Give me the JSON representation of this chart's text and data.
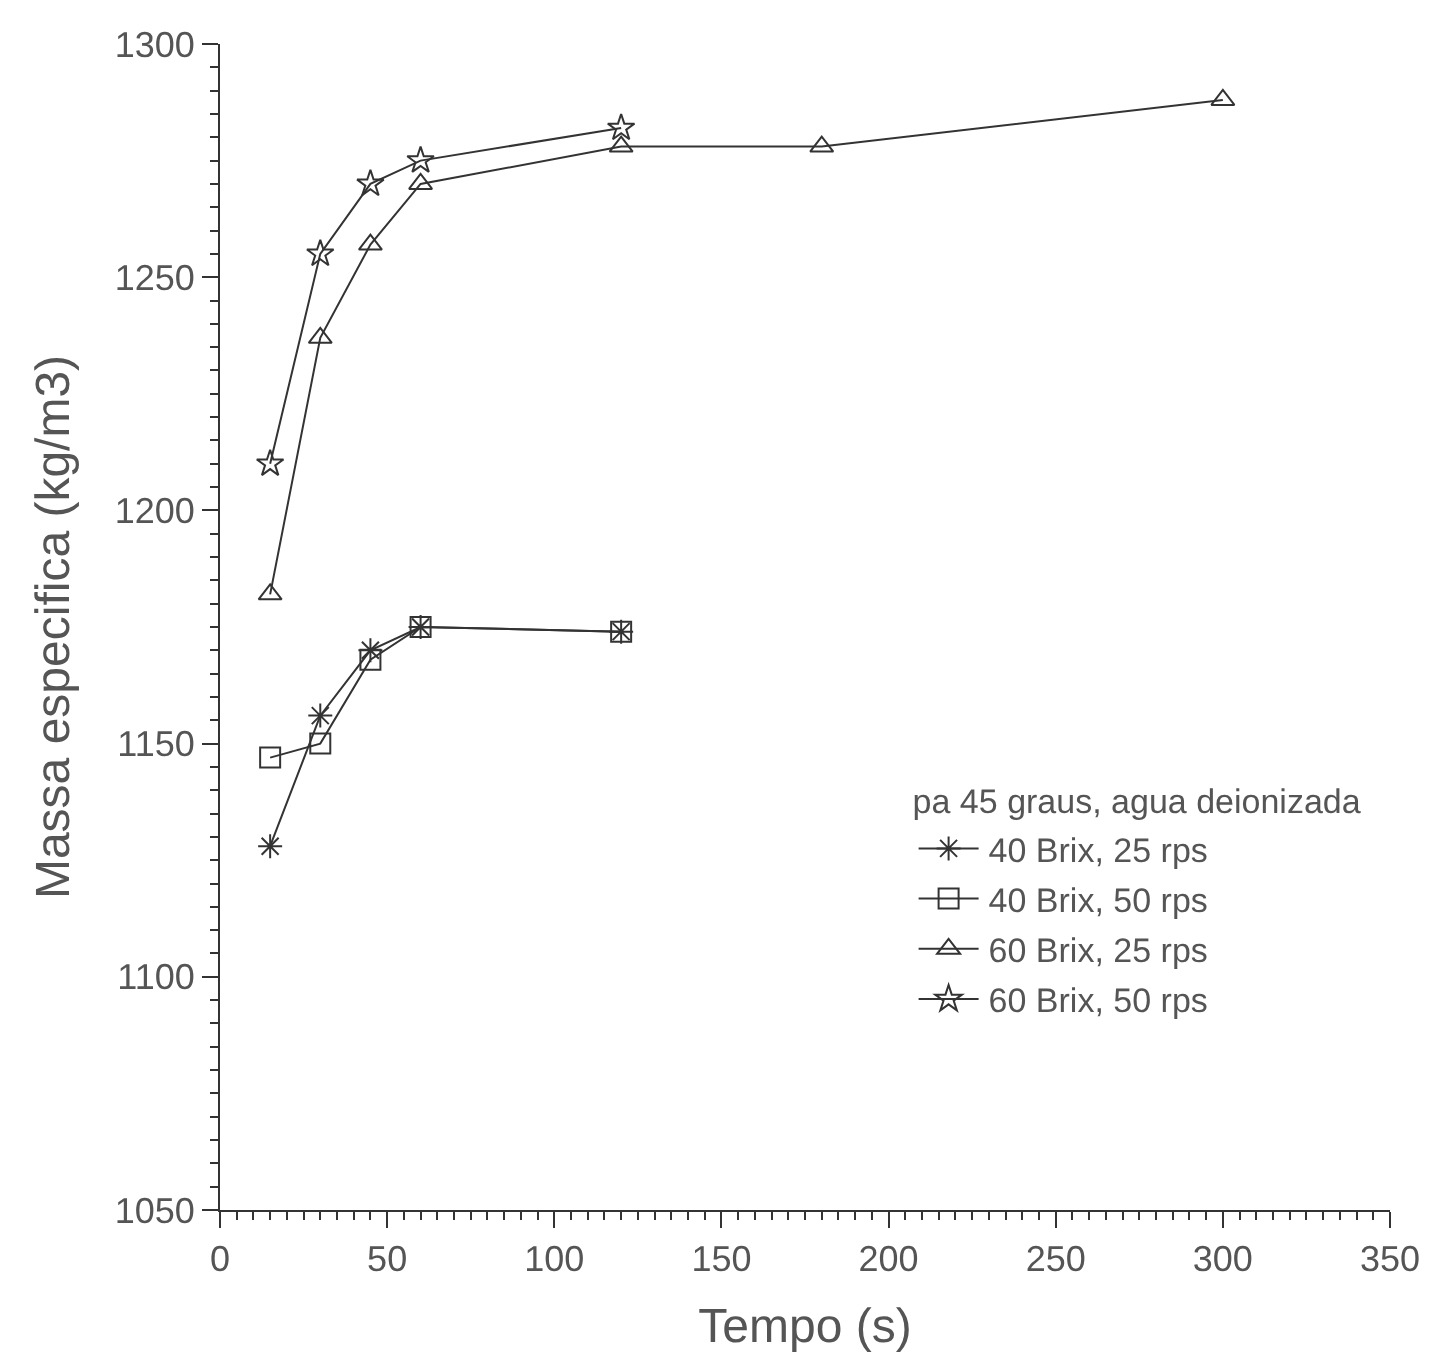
{
  "chart_data": {
    "type": "line",
    "xlabel": "Tempo (s)",
    "ylabel": "Massa especifica (kg/m3)",
    "legend_title": "pa 45 graus, agua deionizada",
    "legend": "bottom right",
    "xlim": [
      0,
      350
    ],
    "xticks": [
      0,
      50,
      100,
      150,
      200,
      250,
      300,
      350
    ],
    "ylim": [
      1050,
      1300
    ],
    "yticks": [
      1050,
      1100,
      1150,
      1200,
      1250,
      1300
    ],
    "series": [
      {
        "name": "40 Brix, 25 rps",
        "color": "#333333",
        "marker": "cross",
        "x": [
          15,
          30,
          45,
          60,
          120
        ],
        "values": [
          1128,
          1156,
          1170,
          1175,
          1174
        ]
      },
      {
        "name": "40 Brix, 50 rps",
        "color": "#333333",
        "marker": "square",
        "x": [
          15,
          30,
          45,
          60,
          120
        ],
        "values": [
          1147,
          1150,
          1168,
          1175,
          1174
        ]
      },
      {
        "name": "60 Brix, 25 rps",
        "color": "#333333",
        "marker": "triangle",
        "x": [
          15,
          30,
          45,
          60,
          120,
          180,
          300
        ],
        "values": [
          1182,
          1237,
          1257,
          1270,
          1278,
          1278,
          1288
        ]
      },
      {
        "name": "60 Brix, 50 rps",
        "color": "#333333",
        "marker": "star",
        "x": [
          15,
          30,
          45,
          60,
          120
        ],
        "values": [
          1210,
          1255,
          1270,
          1275,
          1282
        ]
      }
    ]
  }
}
